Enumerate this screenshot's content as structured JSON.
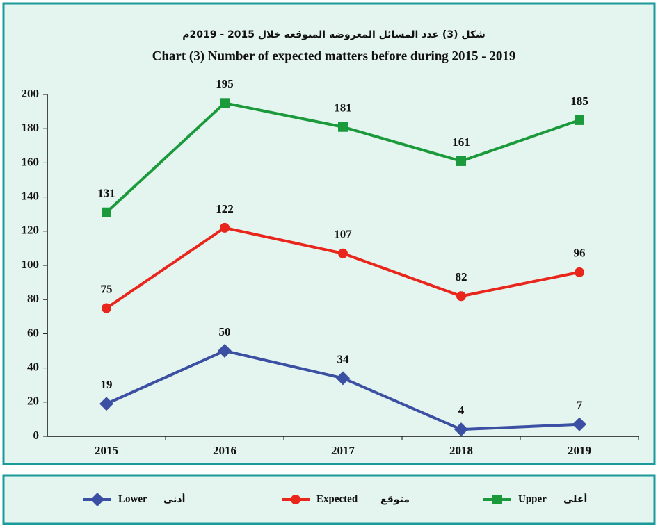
{
  "chart_data": {
    "type": "line",
    "title_ar": "شكل (3) عدد المسائل المعروضة المتوقعة خلال 2015 - 2019م",
    "title": "Chart (3) Number of expected matters before during  2015 - 2019",
    "categories": [
      "2015",
      "2016",
      "2017",
      "2018",
      "2019"
    ],
    "series": [
      {
        "name": "Lower",
        "name_ar": "أدنى",
        "color": "#3b4fa3",
        "marker": "diamond",
        "values": [
          19,
          50,
          34,
          4,
          7
        ]
      },
      {
        "name": "Expected",
        "name_ar": "متوقع",
        "color": "#e8261c",
        "marker": "circle",
        "values": [
          75,
          122,
          107,
          82,
          96
        ]
      },
      {
        "name": "Upper",
        "name_ar": "أعلى",
        "color": "#1b9a3c",
        "marker": "square",
        "values": [
          131,
          195,
          181,
          161,
          185
        ]
      }
    ],
    "ylim": [
      0,
      200
    ],
    "yticks": [
      0,
      20,
      40,
      60,
      80,
      100,
      120,
      140,
      160,
      180,
      200
    ],
    "grid": false,
    "legend": "bottom"
  }
}
